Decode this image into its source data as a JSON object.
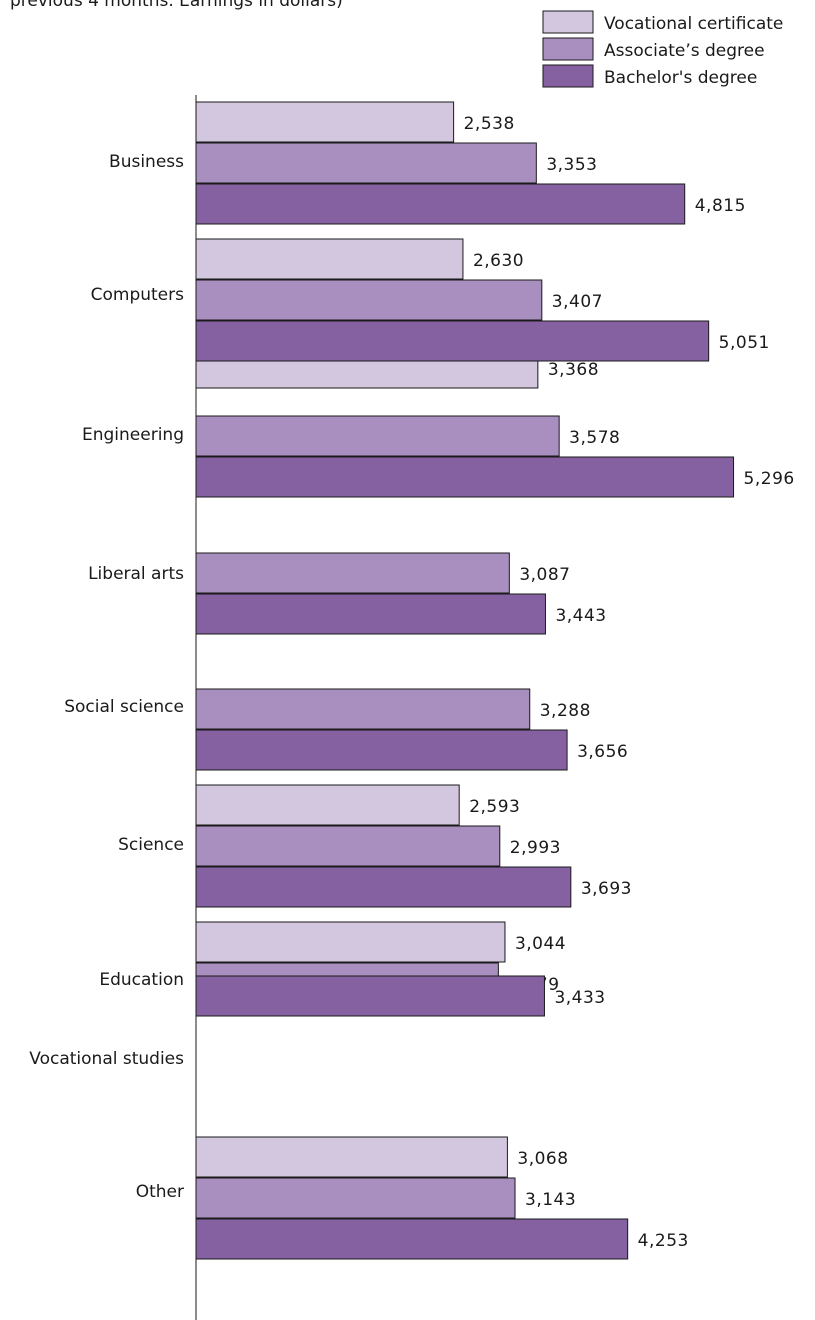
{
  "subtitle": "previous 4 months.  Earnings in dollars)",
  "legend_placement": "top-right",
  "colors": {
    "vocational": "#d3c6df",
    "associate": "#a88fbf",
    "bachelor": "#8661a2",
    "stroke": "#1a1a1a"
  },
  "chart_data": {
    "type": "bar",
    "orientation": "horizontal",
    "title": "",
    "xlabel": "",
    "ylabel": "",
    "xlim": [
      0,
      5600
    ],
    "grid": false,
    "legend": [
      "Vocational certificate",
      "Associate’s degree",
      "Bachelor's degree"
    ],
    "categories": [
      "Business",
      "Computers",
      "Engineering",
      "Liberal arts",
      "Social science",
      "Science",
      "Education",
      "Vocational studies",
      "Other"
    ],
    "series": [
      {
        "name": "Vocational certificate",
        "color": "#d3c6df",
        "values": [
          2538,
          2630,
          3368,
          null,
          null,
          2593,
          null,
          3044,
          3068
        ],
        "labels": [
          "2,538",
          "2,630",
          "3,368",
          null,
          null,
          "2,593",
          null,
          "3,044",
          "3,068"
        ]
      },
      {
        "name": "Associate’s degree",
        "color": "#a88fbf",
        "values": [
          3353,
          3407,
          3578,
          3087,
          3288,
          2993,
          null,
          2979,
          3143
        ],
        "labels": [
          "3,353",
          "3,407",
          "3,578",
          "3,087",
          "3,288",
          "2,993",
          null,
          "2,979",
          "3,143"
        ]
      },
      {
        "name": "Bachelor's degree",
        "color": "#8661a2",
        "values": [
          4815,
          5051,
          5296,
          3443,
          3656,
          3693,
          3433,
          null,
          4253
        ],
        "labels": [
          "4,815",
          "5,051",
          "5,296",
          "3,443",
          "3,656",
          "3,693",
          "3,433",
          null,
          "4,253"
        ]
      }
    ]
  }
}
